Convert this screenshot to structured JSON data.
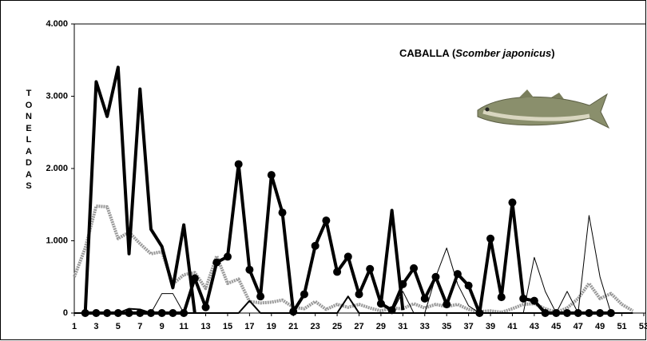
{
  "chart_data": {
    "type": "line",
    "title_parts": [
      "CABALLA (",
      "Scomber japonicus",
      ")"
    ],
    "ylabel": "TONELADAS",
    "x": [
      1,
      2,
      3,
      4,
      5,
      6,
      7,
      8,
      9,
      10,
      11,
      12,
      13,
      14,
      15,
      16,
      17,
      18,
      19,
      20,
      21,
      22,
      23,
      24,
      25,
      26,
      27,
      28,
      29,
      30,
      31,
      32,
      33,
      34,
      35,
      36,
      37,
      38,
      39,
      40,
      41,
      42,
      43,
      44,
      45,
      46,
      47,
      48,
      49,
      50,
      51,
      52,
      53
    ],
    "xlim": [
      1,
      53
    ],
    "xticks": [
      1,
      3,
      5,
      7,
      9,
      11,
      13,
      15,
      17,
      19,
      21,
      23,
      25,
      27,
      29,
      31,
      33,
      35,
      37,
      39,
      41,
      43,
      45,
      47,
      49,
      51,
      53
    ],
    "ylim": [
      0,
      4000
    ],
    "yticks": [
      0,
      {
        "value": 1000,
        "label": "1.000"
      },
      {
        "value": 2000,
        "label": "2.000"
      },
      {
        "value": 3000,
        "label": "3.000"
      },
      {
        "value": 4000,
        "label": "4.000"
      }
    ],
    "series": [
      {
        "color": "#999999",
        "linewidth": 4,
        "linestyle": "dotted",
        "values": [
          500,
          900,
          1480,
          1470,
          1030,
          1120,
          960,
          820,
          850,
          400,
          530,
          560,
          340,
          790,
          410,
          470,
          160,
          140,
          150,
          180,
          80,
          60,
          160,
          50,
          120,
          80,
          120,
          70,
          30,
          70,
          60,
          130,
          70,
          120,
          90,
          120,
          50,
          20,
          30,
          10,
          60,
          120,
          130,
          60,
          10,
          70,
          200,
          410,
          200,
          270,
          120,
          30,
          null
        ]
      },
      {
        "color": "#000000",
        "linewidth": 1,
        "values": [
          0,
          0,
          0,
          0,
          0,
          0,
          0,
          0,
          270,
          270,
          0,
          0,
          0,
          0,
          0,
          0,
          0,
          0,
          0,
          0,
          0,
          0,
          0,
          0,
          0,
          0,
          0,
          0,
          0,
          0,
          300,
          0,
          0,
          500,
          900,
          400,
          100,
          0,
          0,
          0,
          0,
          0,
          770,
          300,
          0,
          300,
          0,
          1350,
          500,
          0,
          0,
          0,
          null
        ]
      },
      {
        "color": "#000000",
        "linewidth": 2,
        "values": [
          0,
          0,
          0,
          0,
          0,
          60,
          50,
          0,
          0,
          0,
          0,
          0,
          0,
          0,
          0,
          0,
          170,
          0,
          0,
          0,
          0,
          0,
          0,
          0,
          0,
          230,
          0,
          0,
          0,
          0,
          0,
          0,
          0,
          0,
          0,
          0,
          0,
          0,
          0,
          0,
          0,
          0,
          0,
          0,
          0,
          0,
          0,
          0,
          0,
          0,
          0,
          0,
          null
        ]
      },
      {
        "color": "#000000",
        "linewidth": 4,
        "values": [
          null,
          0,
          3200,
          2720,
          3400,
          820,
          3100,
          1160,
          920,
          350,
          1220,
          0,
          null,
          null,
          null,
          null,
          null,
          null,
          null,
          null,
          null,
          null,
          null,
          null,
          null,
          null,
          null,
          null,
          130,
          1420,
          40,
          null,
          null,
          null,
          null,
          null,
          null,
          null,
          null,
          null,
          null,
          null,
          null,
          null,
          null,
          null,
          null,
          null,
          null,
          null,
          null,
          null,
          null
        ]
      },
      {
        "color": "#000000",
        "linewidth": 4,
        "marker": "circle",
        "values": [
          null,
          0,
          0,
          0,
          0,
          0,
          0,
          0,
          0,
          0,
          0,
          480,
          80,
          700,
          780,
          2060,
          600,
          230,
          1910,
          1390,
          20,
          260,
          930,
          1280,
          570,
          780,
          260,
          610,
          130,
          40,
          400,
          620,
          200,
          500,
          120,
          540,
          380,
          0,
          1030,
          220,
          1530,
          200,
          170,
          0,
          0,
          0,
          0,
          0,
          0,
          0,
          null,
          null,
          null
        ]
      }
    ]
  }
}
